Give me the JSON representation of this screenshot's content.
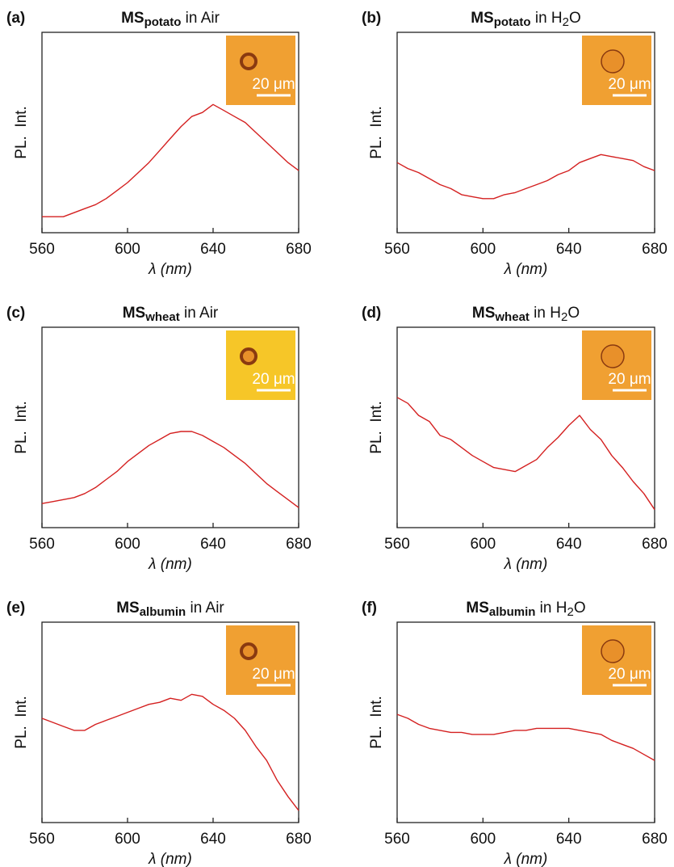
{
  "chart_data": [
    {
      "type": "line",
      "panel": "(a)",
      "title": [
        "MS",
        "potato",
        " in Air"
      ],
      "ylabel": "PL.  Int.",
      "xlabel": "λ (nm)",
      "inset_label": "20 μm",
      "color": "#d42020",
      "x": [
        560,
        565,
        570,
        575,
        580,
        585,
        590,
        595,
        600,
        605,
        610,
        615,
        620,
        625,
        630,
        635,
        640,
        645,
        650,
        655,
        660,
        665,
        670,
        675,
        680
      ],
      "values": [
        8,
        8,
        8,
        10,
        12,
        14,
        17,
        21,
        25,
        30,
        35,
        41,
        47,
        53,
        58,
        60,
        64,
        61,
        58,
        55,
        50,
        45,
        40,
        35,
        31
      ],
      "xlim": [
        560,
        680
      ],
      "xticks": [
        560,
        600,
        640,
        680
      ],
      "ylim": [
        0,
        100
      ]
    },
    {
      "type": "line",
      "panel": "(b)",
      "title": [
        "MS",
        "potato",
        " in H",
        "2",
        "O"
      ],
      "ylabel": "PL.  Int.",
      "xlabel": "λ (nm)",
      "inset_label": "20 μm",
      "color": "#d42020",
      "x": [
        560,
        565,
        570,
        575,
        580,
        585,
        590,
        595,
        600,
        605,
        610,
        615,
        620,
        625,
        630,
        635,
        640,
        645,
        650,
        655,
        660,
        665,
        670,
        675,
        680
      ],
      "values": [
        35,
        32,
        30,
        27,
        24,
        22,
        19,
        18,
        17,
        17,
        19,
        20,
        22,
        24,
        26,
        29,
        31,
        35,
        37,
        39,
        38,
        37,
        36,
        33,
        31
      ],
      "xlim": [
        560,
        680
      ],
      "xticks": [
        560,
        600,
        640,
        680
      ],
      "ylim": [
        0,
        100
      ]
    },
    {
      "type": "line",
      "panel": "(c)",
      "title": [
        "MS",
        "wheat",
        " in Air"
      ],
      "ylabel": "PL.  Int.",
      "xlabel": "λ (nm)",
      "inset_label": "20 μm",
      "color": "#d42020",
      "x": [
        560,
        565,
        570,
        575,
        580,
        585,
        590,
        595,
        600,
        605,
        610,
        615,
        620,
        625,
        630,
        635,
        640,
        645,
        650,
        655,
        660,
        665,
        670,
        675,
        680
      ],
      "values": [
        12,
        13,
        14,
        15,
        17,
        20,
        24,
        28,
        33,
        37,
        41,
        44,
        47,
        48,
        48,
        46,
        43,
        40,
        36,
        32,
        27,
        22,
        18,
        14,
        10
      ],
      "xlim": [
        560,
        680
      ],
      "xticks": [
        560,
        600,
        640,
        680
      ],
      "ylim": [
        0,
        100
      ]
    },
    {
      "type": "line",
      "panel": "(d)",
      "title": [
        "MS",
        "wheat",
        " in H",
        "2",
        "O"
      ],
      "ylabel": "PL.  Int.",
      "xlabel": "λ (nm)",
      "inset_label": "20 μm",
      "color": "#d42020",
      "x": [
        560,
        565,
        570,
        575,
        580,
        585,
        590,
        595,
        600,
        605,
        610,
        615,
        620,
        625,
        630,
        635,
        640,
        645,
        650,
        655,
        660,
        665,
        670,
        675,
        680
      ],
      "values": [
        65,
        62,
        56,
        53,
        46,
        44,
        40,
        36,
        33,
        30,
        29,
        28,
        31,
        34,
        40,
        45,
        51,
        56,
        49,
        44,
        36,
        30,
        23,
        17,
        9
      ],
      "xlim": [
        560,
        680
      ],
      "xticks": [
        560,
        600,
        640,
        680
      ],
      "ylim": [
        0,
        100
      ]
    },
    {
      "type": "line",
      "panel": "(e)",
      "title": [
        "MS",
        "albumin",
        " in Air"
      ],
      "ylabel": "PL.  Int.",
      "xlabel": "λ (nm)",
      "inset_label": "20 μm",
      "color": "#d42020",
      "x": [
        560,
        565,
        570,
        575,
        580,
        585,
        590,
        595,
        600,
        605,
        610,
        615,
        620,
        625,
        630,
        635,
        640,
        645,
        650,
        655,
        660,
        665,
        670,
        675,
        680
      ],
      "values": [
        52,
        50,
        48,
        46,
        46,
        49,
        51,
        53,
        55,
        57,
        59,
        60,
        62,
        61,
        64,
        63,
        59,
        56,
        52,
        46,
        38,
        31,
        21,
        13,
        6
      ],
      "xlim": [
        560,
        680
      ],
      "xticks": [
        560,
        600,
        640,
        680
      ],
      "ylim": [
        0,
        100
      ]
    },
    {
      "type": "line",
      "panel": "(f)",
      "title": [
        "MS",
        "albumin",
        " in H",
        "2",
        "O"
      ],
      "ylabel": "PL.  Int.",
      "xlabel": "λ (nm)",
      "inset_label": "20 μm",
      "color": "#d42020",
      "x": [
        560,
        565,
        570,
        575,
        580,
        585,
        590,
        595,
        600,
        605,
        610,
        615,
        620,
        625,
        630,
        635,
        640,
        645,
        650,
        655,
        660,
        665,
        670,
        675,
        680
      ],
      "values": [
        54,
        52,
        49,
        47,
        46,
        45,
        45,
        44,
        44,
        44,
        45,
        46,
        46,
        47,
        47,
        47,
        47,
        46,
        45,
        44,
        41,
        39,
        37,
        34,
        31
      ],
      "xlim": [
        560,
        680
      ],
      "xticks": [
        560,
        600,
        640,
        680
      ],
      "ylim": [
        0,
        100
      ]
    }
  ]
}
